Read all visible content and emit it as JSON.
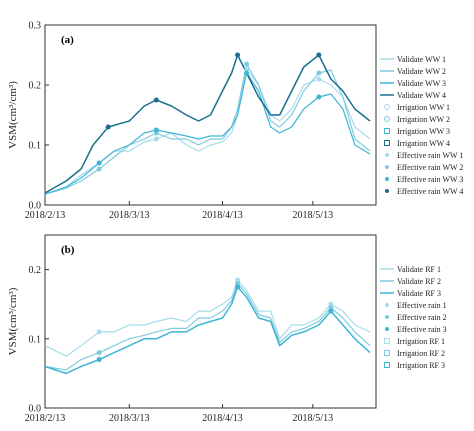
{
  "chart_data": [
    {
      "panel_label": "(a)",
      "type": "line",
      "ylabel": "VSM(cm³/cm³)",
      "ylim": [
        0.0,
        0.3
      ],
      "yticks": [
        "0.0",
        "0.1",
        "0.2",
        "0.3"
      ],
      "xticks": [
        "2018/2/13",
        "2018/3/13",
        "2018/4/13",
        "2018/5/13"
      ],
      "x_range": [
        "2018-02-13",
        "2018-06-03"
      ],
      "series": [
        {
          "name": "Validate WW 1",
          "color": "#a8dcea",
          "points": [
            [
              "2018-02-13",
              0.018
            ],
            [
              "2018-02-20",
              0.03
            ],
            [
              "2018-02-25",
              0.05
            ],
            [
              "2018-03-03",
              0.07
            ],
            [
              "2018-03-08",
              0.09
            ],
            [
              "2018-03-13",
              0.09
            ],
            [
              "2018-03-18",
              0.105
            ],
            [
              "2018-03-22",
              0.11
            ],
            [
              "2018-03-27",
              0.12
            ],
            [
              "2018-04-01",
              0.1
            ],
            [
              "2018-04-05",
              0.09
            ],
            [
              "2018-04-09",
              0.1
            ],
            [
              "2018-04-13",
              0.105
            ],
            [
              "2018-04-16",
              0.12
            ],
            [
              "2018-04-18",
              0.15
            ],
            [
              "2018-04-21",
              0.225
            ],
            [
              "2018-04-25",
              0.2
            ],
            [
              "2018-04-29",
              0.15
            ],
            [
              "2018-05-02",
              0.14
            ],
            [
              "2018-05-06",
              0.16
            ],
            [
              "2018-05-10",
              0.2
            ],
            [
              "2018-05-15",
              0.21
            ],
            [
              "2018-05-19",
              0.2
            ],
            [
              "2018-05-23",
              0.18
            ],
            [
              "2018-05-27",
              0.13
            ],
            [
              "2018-06-01",
              0.11
            ]
          ]
        },
        {
          "name": "Validate WW 2",
          "color": "#7ecbe0",
          "points": [
            [
              "2018-02-13",
              0.018
            ],
            [
              "2018-02-20",
              0.028
            ],
            [
              "2018-02-25",
              0.04
            ],
            [
              "2018-03-03",
              0.06
            ],
            [
              "2018-03-08",
              0.08
            ],
            [
              "2018-03-13",
              0.1
            ],
            [
              "2018-03-18",
              0.11
            ],
            [
              "2018-03-22",
              0.12
            ],
            [
              "2018-03-27",
              0.11
            ],
            [
              "2018-04-01",
              0.11
            ],
            [
              "2018-04-05",
              0.1
            ],
            [
              "2018-04-09",
              0.11
            ],
            [
              "2018-04-13",
              0.11
            ],
            [
              "2018-04-16",
              0.13
            ],
            [
              "2018-04-18",
              0.16
            ],
            [
              "2018-04-21",
              0.235
            ],
            [
              "2018-04-25",
              0.2
            ],
            [
              "2018-04-29",
              0.14
            ],
            [
              "2018-05-02",
              0.13
            ],
            [
              "2018-05-06",
              0.15
            ],
            [
              "2018-05-10",
              0.19
            ],
            [
              "2018-05-15",
              0.22
            ],
            [
              "2018-05-19",
              0.225
            ],
            [
              "2018-05-23",
              0.18
            ],
            [
              "2018-05-27",
              0.11
            ],
            [
              "2018-06-01",
              0.09
            ]
          ]
        },
        {
          "name": "Validate WW 3",
          "color": "#3fb5d6",
          "points": [
            [
              "2018-02-13",
              0.018
            ],
            [
              "2018-02-20",
              0.03
            ],
            [
              "2018-02-25",
              0.045
            ],
            [
              "2018-03-03",
              0.07
            ],
            [
              "2018-03-08",
              0.09
            ],
            [
              "2018-03-13",
              0.1
            ],
            [
              "2018-03-18",
              0.12
            ],
            [
              "2018-03-22",
              0.125
            ],
            [
              "2018-03-27",
              0.12
            ],
            [
              "2018-04-01",
              0.115
            ],
            [
              "2018-04-05",
              0.11
            ],
            [
              "2018-04-09",
              0.115
            ],
            [
              "2018-04-13",
              0.115
            ],
            [
              "2018-04-16",
              0.13
            ],
            [
              "2018-04-18",
              0.15
            ],
            [
              "2018-04-21",
              0.22
            ],
            [
              "2018-04-25",
              0.19
            ],
            [
              "2018-04-29",
              0.13
            ],
            [
              "2018-05-02",
              0.12
            ],
            [
              "2018-05-06",
              0.13
            ],
            [
              "2018-05-10",
              0.16
            ],
            [
              "2018-05-15",
              0.18
            ],
            [
              "2018-05-19",
              0.185
            ],
            [
              "2018-05-23",
              0.16
            ],
            [
              "2018-05-27",
              0.1
            ],
            [
              "2018-06-01",
              0.085
            ]
          ]
        },
        {
          "name": "Validate WW 4",
          "color": "#1a6f8e",
          "points": [
            [
              "2018-02-13",
              0.02
            ],
            [
              "2018-02-20",
              0.04
            ],
            [
              "2018-02-25",
              0.06
            ],
            [
              "2018-03-01",
              0.1
            ],
            [
              "2018-03-06",
              0.13
            ],
            [
              "2018-03-13",
              0.14
            ],
            [
              "2018-03-18",
              0.165
            ],
            [
              "2018-03-22",
              0.175
            ],
            [
              "2018-03-27",
              0.165
            ],
            [
              "2018-04-01",
              0.15
            ],
            [
              "2018-04-05",
              0.14
            ],
            [
              "2018-04-09",
              0.15
            ],
            [
              "2018-04-13",
              0.19
            ],
            [
              "2018-04-16",
              0.22
            ],
            [
              "2018-04-18",
              0.25
            ],
            [
              "2018-04-21",
              0.22
            ],
            [
              "2018-04-25",
              0.18
            ],
            [
              "2018-04-29",
              0.15
            ],
            [
              "2018-05-02",
              0.15
            ],
            [
              "2018-05-06",
              0.19
            ],
            [
              "2018-05-10",
              0.23
            ],
            [
              "2018-05-15",
              0.25
            ],
            [
              "2018-05-19",
              0.21
            ],
            [
              "2018-05-23",
              0.19
            ],
            [
              "2018-05-27",
              0.16
            ],
            [
              "2018-06-01",
              0.14
            ]
          ]
        }
      ],
      "marker_series": [
        {
          "name": "Irrigation WW 1",
          "marker": "circle-open",
          "color": "#a8dcea"
        },
        {
          "name": "Irrigation WW 2",
          "marker": "circle-open",
          "color": "#7ecbe0"
        },
        {
          "name": "Irrigation WW 3",
          "marker": "square-open",
          "color": "#3fb5d6"
        },
        {
          "name": "Irrigation WW 4",
          "marker": "square-open",
          "color": "#1a6f8e"
        },
        {
          "name": "Effective rain WW 1",
          "marker": "dot",
          "color": "#a8dcea",
          "points": [
            [
              "2018-03-03",
              0.07
            ],
            [
              "2018-03-22",
              0.11
            ],
            [
              "2018-04-21",
              0.225
            ],
            [
              "2018-05-15",
              0.21
            ]
          ]
        },
        {
          "name": "Effective rain WW 2",
          "marker": "dot",
          "color": "#7ecbe0",
          "points": [
            [
              "2018-03-03",
              0.06
            ],
            [
              "2018-03-22",
              0.12
            ],
            [
              "2018-04-21",
              0.235
            ],
            [
              "2018-05-15",
              0.22
            ]
          ]
        },
        {
          "name": "Effective rain WW 3",
          "marker": "dot",
          "color": "#3fb5d6",
          "points": [
            [
              "2018-03-03",
              0.07
            ],
            [
              "2018-03-22",
              0.125
            ],
            [
              "2018-04-21",
              0.22
            ],
            [
              "2018-05-15",
              0.18
            ]
          ]
        },
        {
          "name": "Effective rain WW 4",
          "marker": "dot",
          "color": "#1a6f8e",
          "points": [
            [
              "2018-03-06",
              0.13
            ],
            [
              "2018-03-22",
              0.175
            ],
            [
              "2018-04-18",
              0.25
            ],
            [
              "2018-05-15",
              0.25
            ]
          ]
        }
      ]
    },
    {
      "panel_label": "(b)",
      "type": "line",
      "ylabel": "VSM(cm³/cm³)",
      "ylim": [
        0.0,
        0.25
      ],
      "yticks": [
        "0.0",
        "0.1",
        "0.2"
      ],
      "xticks": [
        "2018/2/13",
        "2018/3/13",
        "2018/4/13",
        "2018/5/13"
      ],
      "x_range": [
        "2018-02-13",
        "2018-06-03"
      ],
      "series": [
        {
          "name": "Validate RF 1",
          "color": "#a8dcea",
          "points": [
            [
              "2018-02-13",
              0.09
            ],
            [
              "2018-02-20",
              0.075
            ],
            [
              "2018-02-25",
              0.09
            ],
            [
              "2018-03-03",
              0.11
            ],
            [
              "2018-03-08",
              0.11
            ],
            [
              "2018-03-13",
              0.12
            ],
            [
              "2018-03-18",
              0.12
            ],
            [
              "2018-03-22",
              0.125
            ],
            [
              "2018-03-27",
              0.13
            ],
            [
              "2018-04-01",
              0.125
            ],
            [
              "2018-04-05",
              0.14
            ],
            [
              "2018-04-09",
              0.14
            ],
            [
              "2018-04-13",
              0.15
            ],
            [
              "2018-04-16",
              0.16
            ],
            [
              "2018-04-18",
              0.185
            ],
            [
              "2018-04-21",
              0.17
            ],
            [
              "2018-04-25",
              0.14
            ],
            [
              "2018-04-29",
              0.14
            ],
            [
              "2018-05-02",
              0.1
            ],
            [
              "2018-05-06",
              0.12
            ],
            [
              "2018-05-10",
              0.12
            ],
            [
              "2018-05-15",
              0.13
            ],
            [
              "2018-05-19",
              0.15
            ],
            [
              "2018-05-23",
              0.14
            ],
            [
              "2018-05-27",
              0.12
            ],
            [
              "2018-06-01",
              0.11
            ]
          ]
        },
        {
          "name": "Validate RF 2",
          "color": "#7ecbe0",
          "points": [
            [
              "2018-02-13",
              0.06
            ],
            [
              "2018-02-20",
              0.055
            ],
            [
              "2018-02-25",
              0.07
            ],
            [
              "2018-03-03",
              0.08
            ],
            [
              "2018-03-08",
              0.09
            ],
            [
              "2018-03-13",
              0.1
            ],
            [
              "2018-03-18",
              0.105
            ],
            [
              "2018-03-22",
              0.11
            ],
            [
              "2018-03-27",
              0.115
            ],
            [
              "2018-04-01",
              0.115
            ],
            [
              "2018-04-05",
              0.13
            ],
            [
              "2018-04-09",
              0.13
            ],
            [
              "2018-04-13",
              0.14
            ],
            [
              "2018-04-16",
              0.155
            ],
            [
              "2018-04-18",
              0.18
            ],
            [
              "2018-04-21",
              0.165
            ],
            [
              "2018-04-25",
              0.135
            ],
            [
              "2018-04-29",
              0.13
            ],
            [
              "2018-05-02",
              0.095
            ],
            [
              "2018-05-06",
              0.11
            ],
            [
              "2018-05-10",
              0.115
            ],
            [
              "2018-05-15",
              0.125
            ],
            [
              "2018-05-19",
              0.145
            ],
            [
              "2018-05-23",
              0.13
            ],
            [
              "2018-05-27",
              0.11
            ],
            [
              "2018-06-01",
              0.09
            ]
          ]
        },
        {
          "name": "Validate RF 3",
          "color": "#3fb5d6",
          "points": [
            [
              "2018-02-13",
              0.06
            ],
            [
              "2018-02-20",
              0.05
            ],
            [
              "2018-02-25",
              0.06
            ],
            [
              "2018-03-03",
              0.07
            ],
            [
              "2018-03-08",
              0.08
            ],
            [
              "2018-03-13",
              0.09
            ],
            [
              "2018-03-18",
              0.1
            ],
            [
              "2018-03-22",
              0.1
            ],
            [
              "2018-03-27",
              0.11
            ],
            [
              "2018-04-01",
              0.11
            ],
            [
              "2018-04-05",
              0.12
            ],
            [
              "2018-04-09",
              0.125
            ],
            [
              "2018-04-13",
              0.13
            ],
            [
              "2018-04-16",
              0.15
            ],
            [
              "2018-04-18",
              0.175
            ],
            [
              "2018-04-21",
              0.16
            ],
            [
              "2018-04-25",
              0.13
            ],
            [
              "2018-04-29",
              0.125
            ],
            [
              "2018-05-02",
              0.09
            ],
            [
              "2018-05-06",
              0.105
            ],
            [
              "2018-05-10",
              0.11
            ],
            [
              "2018-05-15",
              0.12
            ],
            [
              "2018-05-19",
              0.14
            ],
            [
              "2018-05-23",
              0.12
            ],
            [
              "2018-05-27",
              0.1
            ],
            [
              "2018-06-01",
              0.08
            ]
          ]
        }
      ],
      "marker_series": [
        {
          "name": "Effective rain 1",
          "marker": "dot",
          "color": "#a8dcea",
          "points": [
            [
              "2018-03-03",
              0.11
            ],
            [
              "2018-04-18",
              0.185
            ],
            [
              "2018-05-19",
              0.15
            ]
          ]
        },
        {
          "name": "Effective rain 2",
          "marker": "dot",
          "color": "#7ecbe0",
          "points": [
            [
              "2018-03-03",
              0.08
            ],
            [
              "2018-04-18",
              0.18
            ],
            [
              "2018-05-19",
              0.145
            ]
          ]
        },
        {
          "name": "Effective rain 3",
          "marker": "dot",
          "color": "#3fb5d6",
          "points": [
            [
              "2018-03-03",
              0.07
            ],
            [
              "2018-04-18",
              0.175
            ],
            [
              "2018-05-19",
              0.14
            ]
          ]
        },
        {
          "name": "Irrigation RF 1",
          "marker": "square-open",
          "color": "#a8dcea"
        },
        {
          "name": "Irrigation RF 2",
          "marker": "square-open",
          "color": "#7ecbe0"
        },
        {
          "name": "Irrigation RF 3",
          "marker": "square-open",
          "color": "#3fb5d6"
        }
      ]
    }
  ]
}
